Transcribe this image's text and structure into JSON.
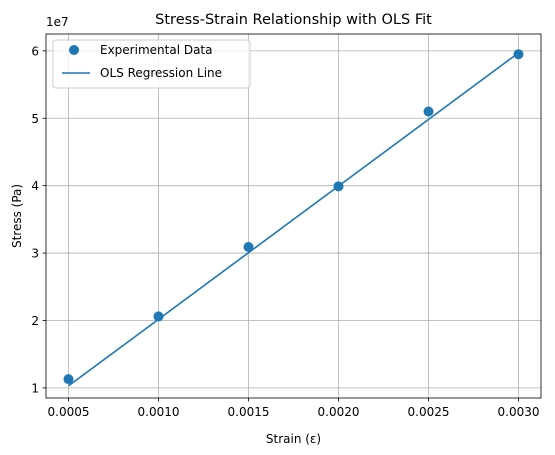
{
  "chart_data": {
    "type": "scatter",
    "title": "Stress-Strain Relationship with OLS Fit",
    "xlabel": "Strain (ε)",
    "ylabel": "Stress (Pa)",
    "y_offset_label": "1e7",
    "xlim": [
      0.000375,
      0.003125
    ],
    "ylim": [
      8500000,
      62500000
    ],
    "x_ticks": [
      0.0005,
      0.001,
      0.0015,
      0.002,
      0.0025,
      0.003
    ],
    "x_tick_labels": [
      "0.0005",
      "0.0010",
      "0.0015",
      "0.0020",
      "0.0025",
      "0.0030"
    ],
    "y_ticks": [
      10000000,
      20000000,
      30000000,
      40000000,
      50000000,
      60000000
    ],
    "y_tick_labels": [
      "1",
      "2",
      "3",
      "4",
      "5",
      "6"
    ],
    "grid": true,
    "legend_position": "top-left",
    "series": [
      {
        "name": "Experimental Data",
        "kind": "scatter",
        "color": "#1f77b4",
        "x": [
          0.0005,
          0.001,
          0.0015,
          0.002,
          0.0025,
          0.003
        ],
        "y": [
          11300000,
          20600000,
          30900000,
          39900000,
          51000000,
          59500000
        ]
      },
      {
        "name": "OLS Regression Line",
        "kind": "line",
        "color": "#1f77b4",
        "x": [
          0.0005,
          0.003
        ],
        "y": [
          10300000,
          59700000
        ]
      }
    ]
  }
}
